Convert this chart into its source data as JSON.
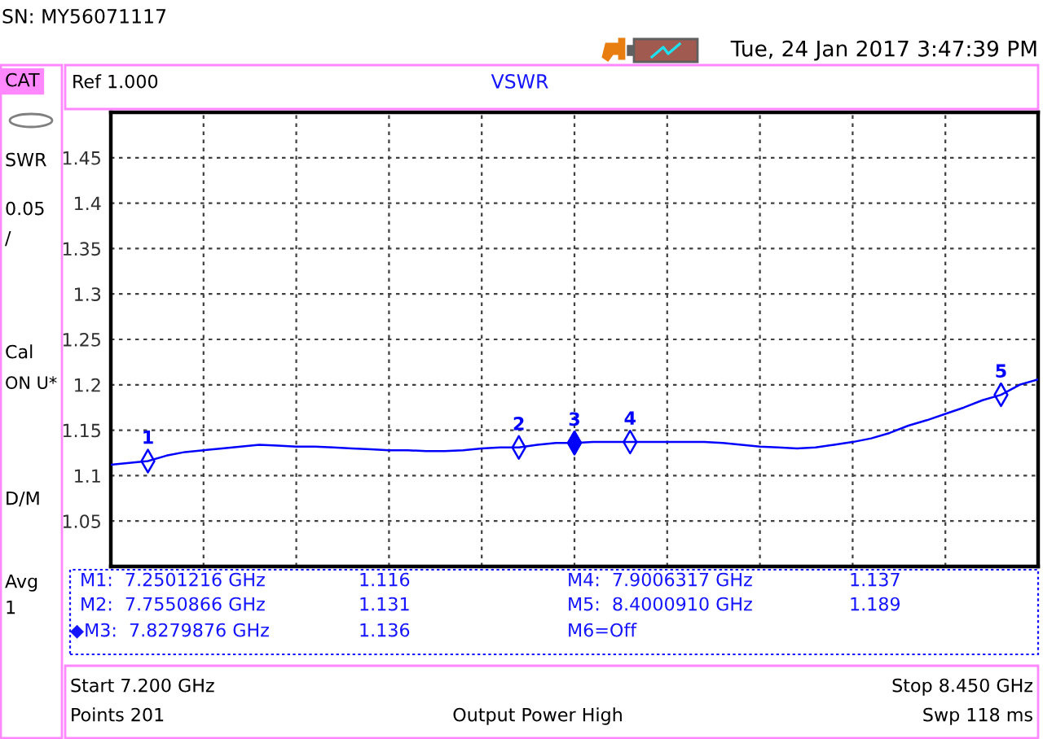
{
  "chart_data": {
    "type": "line",
    "title": "VSWR",
    "categories": [
      null,
      null,
      null,
      null,
      null,
      null,
      null,
      null,
      null,
      null,
      null,
      null,
      null,
      null,
      null,
      null,
      null,
      null,
      null,
      null,
      null,
      null,
      null,
      null,
      null,
      null,
      null,
      null,
      null,
      null,
      null,
      null,
      null,
      null,
      null,
      null,
      null,
      null,
      null,
      null,
      null,
      null,
      null,
      null,
      null,
      null,
      null,
      null,
      null,
      null,
      null
    ],
    "ylim": [
      1.0,
      1.5
    ],
    "yticks": [
      1.05,
      1.1,
      1.15,
      1.2,
      1.25,
      1.3,
      1.35,
      1.4,
      1.45
    ],
    "tick_labels": "y",
    "grid": true,
    "series": [
      {
        "color": "#0000ff",
        "marker": "none",
        "line_style": "solid",
        "values": [
          1.112,
          1.114,
          1.116,
          1.122,
          1.126,
          1.128,
          1.13,
          1.132,
          1.134,
          1.133,
          1.132,
          1.132,
          1.131,
          1.13,
          1.129,
          1.128,
          1.128,
          1.127,
          1.127,
          1.128,
          1.13,
          1.131,
          1.131,
          1.134,
          1.136,
          1.136,
          1.137,
          1.137,
          1.137,
          1.137,
          1.137,
          1.137,
          1.137,
          1.136,
          1.134,
          1.132,
          1.131,
          1.13,
          1.131,
          1.134,
          1.137,
          1.141,
          1.147,
          1.155,
          1.161,
          1.168,
          1.175,
          1.183,
          1.189,
          1.2,
          1.206
        ]
      },
      {
        "type": "scatter",
        "name": "1",
        "color": "#0000ff",
        "marker": "diamond",
        "values": [
          null,
          null,
          1.116,
          null,
          null,
          null,
          null,
          null,
          null,
          null,
          null,
          null,
          null,
          null,
          null,
          null,
          null,
          null,
          null,
          null,
          null,
          null,
          null,
          null,
          null,
          null,
          null,
          null,
          null,
          null,
          null,
          null,
          null,
          null,
          null,
          null,
          null,
          null,
          null,
          null,
          null,
          null,
          null,
          null,
          null,
          null,
          null,
          null,
          null,
          null,
          null
        ]
      },
      {
        "type": "scatter",
        "name": "2",
        "color": "#0000ff",
        "marker": "diamond",
        "values": [
          null,
          null,
          null,
          null,
          null,
          null,
          null,
          null,
          null,
          null,
          null,
          null,
          null,
          null,
          null,
          null,
          null,
          null,
          null,
          null,
          null,
          null,
          1.131,
          null,
          null,
          null,
          null,
          null,
          null,
          null,
          null,
          null,
          null,
          null,
          null,
          null,
          null,
          null,
          null,
          null,
          null,
          null,
          null,
          null,
          null,
          null,
          null,
          null,
          null,
          null,
          null
        ]
      },
      {
        "type": "scatter",
        "name": "3",
        "color": "#0000ff",
        "marker": "diamond",
        "values": [
          null,
          null,
          null,
          null,
          null,
          null,
          null,
          null,
          null,
          null,
          null,
          null,
          null,
          null,
          null,
          null,
          null,
          null,
          null,
          null,
          null,
          null,
          null,
          null,
          null,
          1.136,
          null,
          null,
          null,
          null,
          null,
          null,
          null,
          null,
          null,
          null,
          null,
          null,
          null,
          null,
          null,
          null,
          null,
          null,
          null,
          null,
          null,
          null,
          null,
          null,
          null
        ]
      },
      {
        "type": "scatter",
        "name": "4",
        "color": "#0000ff",
        "marker": "diamond",
        "values": [
          null,
          null,
          null,
          null,
          null,
          null,
          null,
          null,
          null,
          null,
          null,
          null,
          null,
          null,
          null,
          null,
          null,
          null,
          null,
          null,
          null,
          null,
          null,
          null,
          null,
          null,
          null,
          null,
          1.137,
          null,
          null,
          null,
          null,
          null,
          null,
          null,
          null,
          null,
          null,
          null,
          null,
          null,
          null,
          null,
          null,
          null,
          null,
          null,
          null,
          null,
          null
        ]
      },
      {
        "type": "scatter",
        "name": "5",
        "color": "#0000ff",
        "marker": "diamond",
        "values": [
          null,
          null,
          null,
          null,
          null,
          null,
          null,
          null,
          null,
          null,
          null,
          null,
          null,
          null,
          null,
          null,
          null,
          null,
          null,
          null,
          null,
          null,
          null,
          null,
          null,
          null,
          null,
          null,
          null,
          null,
          null,
          null,
          null,
          null,
          null,
          null,
          null,
          null,
          null,
          null,
          null,
          null,
          null,
          null,
          null,
          null,
          null,
          null,
          1.189,
          null,
          null
        ]
      },
      {
        "type": "scatter",
        "color": "#0000ff",
        "marker": "diamond",
        "values": [
          null,
          null,
          null,
          null,
          null,
          null,
          null,
          null,
          null,
          null,
          null,
          null,
          null,
          null,
          null,
          null,
          null,
          null,
          null,
          null,
          null,
          null,
          null,
          null,
          null,
          1.136,
          null,
          null,
          null,
          null,
          null,
          null,
          null,
          null,
          null,
          null,
          null,
          null,
          null,
          null,
          null,
          null,
          null,
          null,
          null,
          null,
          null,
          null,
          null,
          null,
          null
        ]
      }
    ],
    "annotations": [
      "SN: MY56071117",
      "Tue, 24 Jan 2017 3:47:39 PM",
      "CAT",
      "Ref 1.000",
      "SWR",
      "0.05",
      "/",
      "Cal",
      "ON U*",
      "D/M",
      "Avg",
      "1",
      "M1:  7.2501216 GHz",
      "1.116",
      "M4:  7.9006317 GHz",
      "1.137",
      "M2:  7.7550866 GHz",
      "1.131",
      "M5:  8.4000910 GHz",
      "1.189",
      "◆M3:  7.8279876 GHz",
      "1.136",
      "M6=Off",
      "Start 7.200 GHz",
      "Stop 8.450 GHz",
      "Points 201",
      "Output Power High",
      "Swp 118 ms"
    ]
  }
}
